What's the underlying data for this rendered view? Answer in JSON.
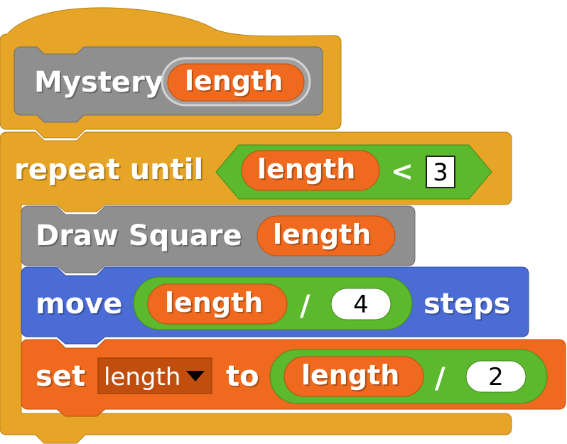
{
  "colors": {
    "control": "#E6A526",
    "custom": "#8F8F8F",
    "variable": "#EF6A1E",
    "operator": "#5CB82D",
    "motion": "#4A6CD4",
    "var_dropdown_bg": "#C24E0D"
  },
  "hat": {
    "block_name": "Mystery",
    "param": "length"
  },
  "repeat_until": {
    "label": "repeat until",
    "condition": {
      "left": "length",
      "operator": "<",
      "right": "3"
    }
  },
  "draw_square": {
    "label": "Draw Square",
    "arg": "length"
  },
  "move": {
    "label": "move",
    "expr": {
      "left": "length",
      "operator": "/",
      "right": "4"
    },
    "suffix": "steps"
  },
  "set": {
    "label": "set",
    "var": "length",
    "to_label": "to",
    "expr": {
      "left": "length",
      "operator": "/",
      "right": "2"
    }
  }
}
